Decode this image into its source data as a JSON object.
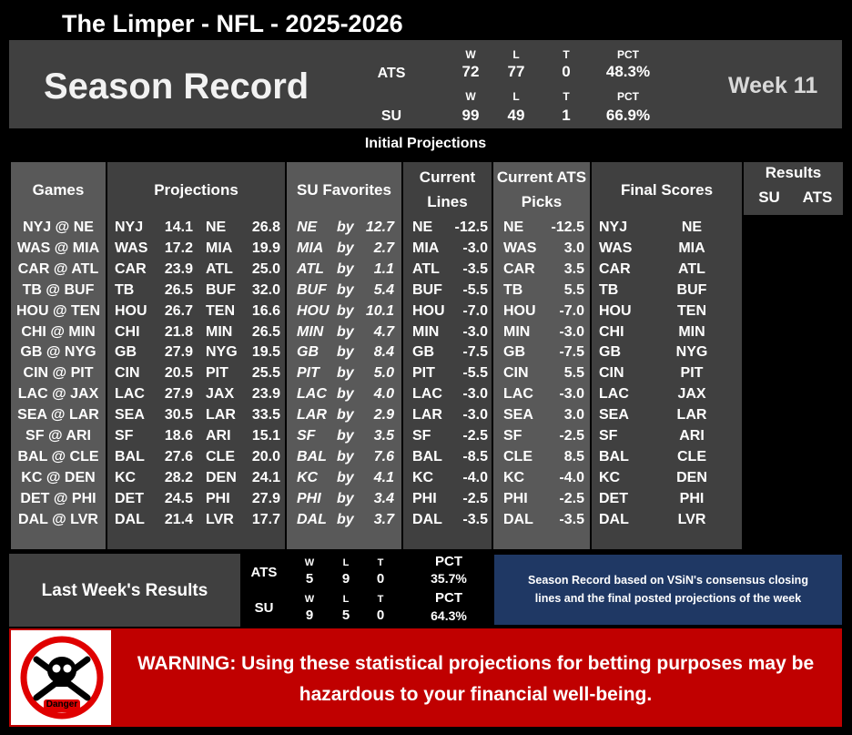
{
  "title": "The Limper - NFL - 2025-2026",
  "season": {
    "heading": "Season Record",
    "week": "Week 11",
    "ats": {
      "label": "ATS",
      "w_h": "W",
      "l_h": "L",
      "t_h": "T",
      "pct_h": "PCT",
      "w": "72",
      "l": "77",
      "t": "0",
      "pct": "48.3%"
    },
    "su": {
      "label": "SU",
      "w_h": "W",
      "l_h": "L",
      "t_h": "T",
      "pct_h": "PCT",
      "w": "99",
      "l": "49",
      "t": "1",
      "pct": "66.9%"
    }
  },
  "subtitle": "Initial Projections",
  "headers": {
    "games": "Games",
    "projections": "Projections",
    "su_favorites": "SU Favorites",
    "current_lines_1": "Current",
    "current_lines_2": "Lines",
    "ats_picks_1": "Current ATS",
    "ats_picks_2": "Picks",
    "final_scores": "Final Scores",
    "results": "Results",
    "results_su": "SU",
    "results_ats": "ATS"
  },
  "games": [
    {
      "game": "NYJ @ NE",
      "p1": "NYJ",
      "s1": "14.1",
      "p2": "NE",
      "s2": "26.8",
      "fav": "NE",
      "by": "by",
      "margin": "12.7",
      "lt": "NE",
      "lv": "-12.5",
      "pt": "NE",
      "pv": "-12.5",
      "f1": "NYJ",
      "f2": "NE"
    },
    {
      "game": "WAS @ MIA",
      "p1": "WAS",
      "s1": "17.2",
      "p2": "MIA",
      "s2": "19.9",
      "fav": "MIA",
      "by": "by",
      "margin": "2.7",
      "lt": "MIA",
      "lv": "-3.0",
      "pt": "WAS",
      "pv": "3.0",
      "f1": "WAS",
      "f2": "MIA"
    },
    {
      "game": "CAR @ ATL",
      "p1": "CAR",
      "s1": "23.9",
      "p2": "ATL",
      "s2": "25.0",
      "fav": "ATL",
      "by": "by",
      "margin": "1.1",
      "lt": "ATL",
      "lv": "-3.5",
      "pt": "CAR",
      "pv": "3.5",
      "f1": "CAR",
      "f2": "ATL"
    },
    {
      "game": "TB @ BUF",
      "p1": "TB",
      "s1": "26.5",
      "p2": "BUF",
      "s2": "32.0",
      "fav": "BUF",
      "by": "by",
      "margin": "5.4",
      "lt": "BUF",
      "lv": "-5.5",
      "pt": "TB",
      "pv": "5.5",
      "f1": "TB",
      "f2": "BUF"
    },
    {
      "game": "HOU @ TEN",
      "p1": "HOU",
      "s1": "26.7",
      "p2": "TEN",
      "s2": "16.6",
      "fav": "HOU",
      "by": "by",
      "margin": "10.1",
      "lt": "HOU",
      "lv": "-7.0",
      "pt": "HOU",
      "pv": "-7.0",
      "f1": "HOU",
      "f2": "TEN"
    },
    {
      "game": "CHI @ MIN",
      "p1": "CHI",
      "s1": "21.8",
      "p2": "MIN",
      "s2": "26.5",
      "fav": "MIN",
      "by": "by",
      "margin": "4.7",
      "lt": "MIN",
      "lv": "-3.0",
      "pt": "MIN",
      "pv": "-3.0",
      "f1": "CHI",
      "f2": "MIN"
    },
    {
      "game": "GB @ NYG",
      "p1": "GB",
      "s1": "27.9",
      "p2": "NYG",
      "s2": "19.5",
      "fav": "GB",
      "by": "by",
      "margin": "8.4",
      "lt": "GB",
      "lv": "-7.5",
      "pt": "GB",
      "pv": "-7.5",
      "f1": "GB",
      "f2": "NYG"
    },
    {
      "game": "CIN @ PIT",
      "p1": "CIN",
      "s1": "20.5",
      "p2": "PIT",
      "s2": "25.5",
      "fav": "PIT",
      "by": "by",
      "margin": "5.0",
      "lt": "PIT",
      "lv": "-5.5",
      "pt": "CIN",
      "pv": "5.5",
      "f1": "CIN",
      "f2": "PIT"
    },
    {
      "game": "LAC @ JAX",
      "p1": "LAC",
      "s1": "27.9",
      "p2": "JAX",
      "s2": "23.9",
      "fav": "LAC",
      "by": "by",
      "margin": "4.0",
      "lt": "LAC",
      "lv": "-3.0",
      "pt": "LAC",
      "pv": "-3.0",
      "f1": "LAC",
      "f2": "JAX"
    },
    {
      "game": "SEA @ LAR",
      "p1": "SEA",
      "s1": "30.5",
      "p2": "LAR",
      "s2": "33.5",
      "fav": "LAR",
      "by": "by",
      "margin": "2.9",
      "lt": "LAR",
      "lv": "-3.0",
      "pt": "SEA",
      "pv": "3.0",
      "f1": "SEA",
      "f2": "LAR"
    },
    {
      "game": "SF @ ARI",
      "p1": "SF",
      "s1": "18.6",
      "p2": "ARI",
      "s2": "15.1",
      "fav": "SF",
      "by": "by",
      "margin": "3.5",
      "lt": "SF",
      "lv": "-2.5",
      "pt": "SF",
      "pv": "-2.5",
      "f1": "SF",
      "f2": "ARI"
    },
    {
      "game": "BAL @ CLE",
      "p1": "BAL",
      "s1": "27.6",
      "p2": "CLE",
      "s2": "20.0",
      "fav": "BAL",
      "by": "by",
      "margin": "7.6",
      "lt": "BAL",
      "lv": "-8.5",
      "pt": "CLE",
      "pv": "8.5",
      "f1": "BAL",
      "f2": "CLE"
    },
    {
      "game": "KC @ DEN",
      "p1": "KC",
      "s1": "28.2",
      "p2": "DEN",
      "s2": "24.1",
      "fav": "KC",
      "by": "by",
      "margin": "4.1",
      "lt": "KC",
      "lv": "-4.0",
      "pt": "KC",
      "pv": "-4.0",
      "f1": "KC",
      "f2": "DEN"
    },
    {
      "game": "DET @ PHI",
      "p1": "DET",
      "s1": "24.5",
      "p2": "PHI",
      "s2": "27.9",
      "fav": "PHI",
      "by": "by",
      "margin": "3.4",
      "lt": "PHI",
      "lv": "-2.5",
      "pt": "PHI",
      "pv": "-2.5",
      "f1": "DET",
      "f2": "PHI"
    },
    {
      "game": "DAL @ LVR",
      "p1": "DAL",
      "s1": "21.4",
      "p2": "LVR",
      "s2": "17.7",
      "fav": "DAL",
      "by": "by",
      "margin": "3.7",
      "lt": "DAL",
      "lv": "-3.5",
      "pt": "DAL",
      "pv": "-3.5",
      "f1": "DAL",
      "f2": "LVR"
    }
  ],
  "last_week": {
    "label": "Last Week's Results",
    "ats": {
      "label": "ATS",
      "w_h": "W",
      "l_h": "L",
      "t_h": "T",
      "pct_h": "PCT",
      "w": "5",
      "l": "9",
      "t": "0",
      "pct": "35.7%"
    },
    "su": {
      "label": "SU",
      "w_h": "W",
      "l_h": "L",
      "t_h": "T",
      "pct_h": "PCT",
      "w": "9",
      "l": "5",
      "t": "0",
      "pct": "64.3%"
    }
  },
  "note": {
    "line1": "Season Record based on VSiN's consensus closing",
    "line2": "lines and the final posted projections of the week"
  },
  "warning": {
    "line1": "WARNING: Using these statistical projections for betting purposes may be",
    "line2": "hazardous to your financial well-being.",
    "badge": "Danger"
  },
  "colors": {
    "warning_bg": "#c00000",
    "note_bg": "#1f3864",
    "panel_dark": "#404040",
    "panel_mid": "#595959"
  }
}
